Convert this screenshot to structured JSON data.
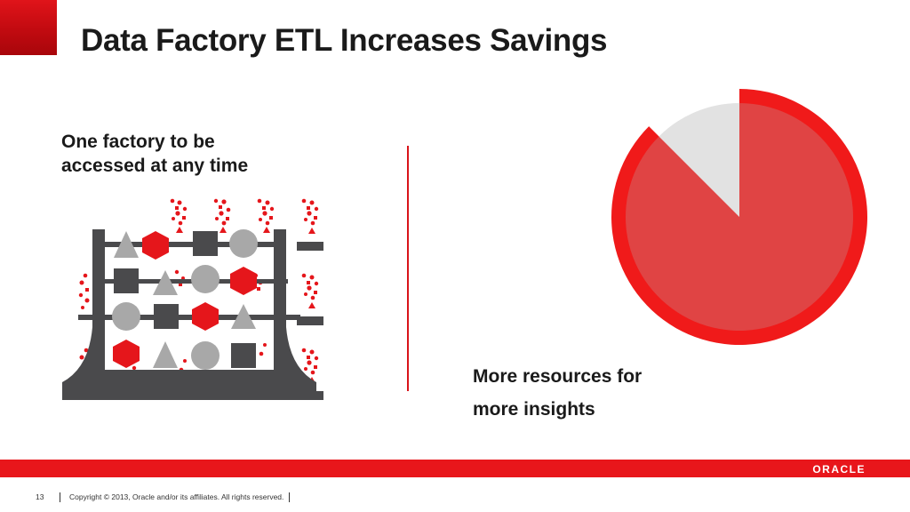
{
  "slide": {
    "title": "Data Factory ETL Increases Savings",
    "left_caption": [
      "One factory to be",
      "accessed at any time"
    ],
    "right_caption": [
      "More resources for",
      "more insights"
    ]
  },
  "footer": {
    "page_number": "13",
    "copyright": "Copyright © 2013, Oracle and/or its affiliates. All rights reserved.",
    "logo_text": "ORACLE"
  },
  "pie": {
    "red_fraction": 0.875,
    "small_slice_fraction": 0.125
  },
  "colors": {
    "brand_red": "#e8161b",
    "dark_red": "#c10a10",
    "pie_ring": "#f01a1a",
    "pie_fill": "#e04444",
    "pie_slice": "#e2e2e2",
    "factory_dark": "#4a4a4c",
    "shape_gray": "#a8a8a8",
    "shape_red": "#e5161b"
  }
}
